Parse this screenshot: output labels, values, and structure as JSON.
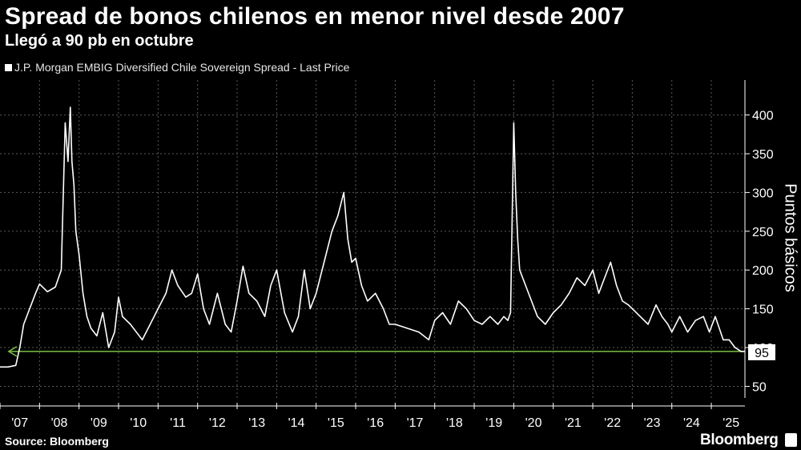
{
  "title": "Spread de bonos chilenos en menor nivel desde 2007",
  "subtitle": "Llegó a 90 pb en octubre",
  "legend": "J.P. Morgan EMBIG Diversified Chile Sovereign Spread - Last Price",
  "source": "Source: Bloomberg",
  "brand": "Bloomberg",
  "colors": {
    "background": "#000000",
    "series": "#ffffff",
    "reference_line": "#7bc142",
    "grid": "#5a5a5a"
  },
  "chart_data": {
    "type": "line",
    "title": "Spread de bonos chilenos en menor nivel desde 2007",
    "subtitle": "Llegó a 90 pb en octubre",
    "ylabel": "Puntos básicos",
    "ylim": [
      35,
      445
    ],
    "yticks": [
      50,
      100,
      150,
      200,
      250,
      300,
      350,
      400
    ],
    "yticklabels": [
      "50",
      "100",
      "150",
      "200",
      "250",
      "300",
      "350",
      "400"
    ],
    "xlim": [
      2007.0,
      2025.85
    ],
    "xticklabels": [
      "'07",
      "'08",
      "'09",
      "'10",
      "'11",
      "'12",
      "'13",
      "'14",
      "'15",
      "'16",
      "'17",
      "'18",
      "'19",
      "'20",
      "'21",
      "'22",
      "'23",
      "'24",
      "'25"
    ],
    "y_axis_side": "right",
    "grid": true,
    "legend_position": "top-left",
    "last_value_label": "95",
    "reference_line_value": 95,
    "series": [
      {
        "name": "J.P. Morgan EMBIG Diversified Chile Sovereign Spread - Last Price",
        "x": [
          2007.0,
          2007.2,
          2007.4,
          2007.5,
          2007.6,
          2007.75,
          2007.9,
          2008.0,
          2008.2,
          2008.4,
          2008.55,
          2008.65,
          2008.72,
          2008.78,
          2008.82,
          2008.87,
          2008.92,
          2009.0,
          2009.1,
          2009.2,
          2009.3,
          2009.45,
          2009.6,
          2009.75,
          2009.9,
          2010.0,
          2010.1,
          2010.3,
          2010.45,
          2010.6,
          2010.8,
          2011.0,
          2011.2,
          2011.35,
          2011.5,
          2011.7,
          2011.85,
          2012.0,
          2012.15,
          2012.3,
          2012.5,
          2012.7,
          2012.85,
          2013.0,
          2013.15,
          2013.3,
          2013.5,
          2013.7,
          2013.85,
          2014.0,
          2014.2,
          2014.4,
          2014.55,
          2014.7,
          2014.85,
          2015.0,
          2015.2,
          2015.4,
          2015.55,
          2015.7,
          2015.8,
          2015.9,
          2016.0,
          2016.15,
          2016.3,
          2016.5,
          2016.7,
          2016.85,
          2017.0,
          2017.3,
          2017.6,
          2017.85,
          2018.0,
          2018.2,
          2018.4,
          2018.6,
          2018.8,
          2019.0,
          2019.2,
          2019.4,
          2019.6,
          2019.75,
          2019.85,
          2019.92,
          2020.0,
          2020.05,
          2020.1,
          2020.15,
          2020.3,
          2020.45,
          2020.6,
          2020.8,
          2021.0,
          2021.2,
          2021.4,
          2021.6,
          2021.8,
          2022.0,
          2022.15,
          2022.3,
          2022.45,
          2022.6,
          2022.75,
          2022.9,
          2023.0,
          2023.2,
          2023.4,
          2023.6,
          2023.75,
          2023.9,
          2024.0,
          2024.2,
          2024.4,
          2024.6,
          2024.8,
          2024.95,
          2025.1,
          2025.3,
          2025.45,
          2025.6,
          2025.75,
          2025.85
        ],
        "y": [
          75,
          75,
          77,
          100,
          130,
          150,
          170,
          182,
          172,
          178,
          200,
          390,
          340,
          410,
          340,
          310,
          250,
          220,
          170,
          140,
          125,
          115,
          145,
          100,
          120,
          165,
          140,
          130,
          120,
          110,
          130,
          150,
          170,
          200,
          180,
          165,
          170,
          195,
          150,
          130,
          170,
          130,
          120,
          160,
          205,
          170,
          160,
          140,
          180,
          200,
          145,
          120,
          140,
          200,
          150,
          170,
          210,
          250,
          270,
          300,
          240,
          210,
          215,
          180,
          160,
          170,
          150,
          130,
          130,
          125,
          120,
          110,
          135,
          145,
          130,
          160,
          150,
          135,
          130,
          140,
          130,
          140,
          135,
          145,
          390,
          300,
          240,
          200,
          180,
          160,
          140,
          130,
          145,
          155,
          170,
          190,
          180,
          200,
          170,
          190,
          210,
          180,
          160,
          155,
          150,
          140,
          130,
          155,
          140,
          130,
          120,
          140,
          120,
          135,
          140,
          120,
          140,
          110,
          110,
          100,
          95,
          95
        ]
      }
    ]
  }
}
